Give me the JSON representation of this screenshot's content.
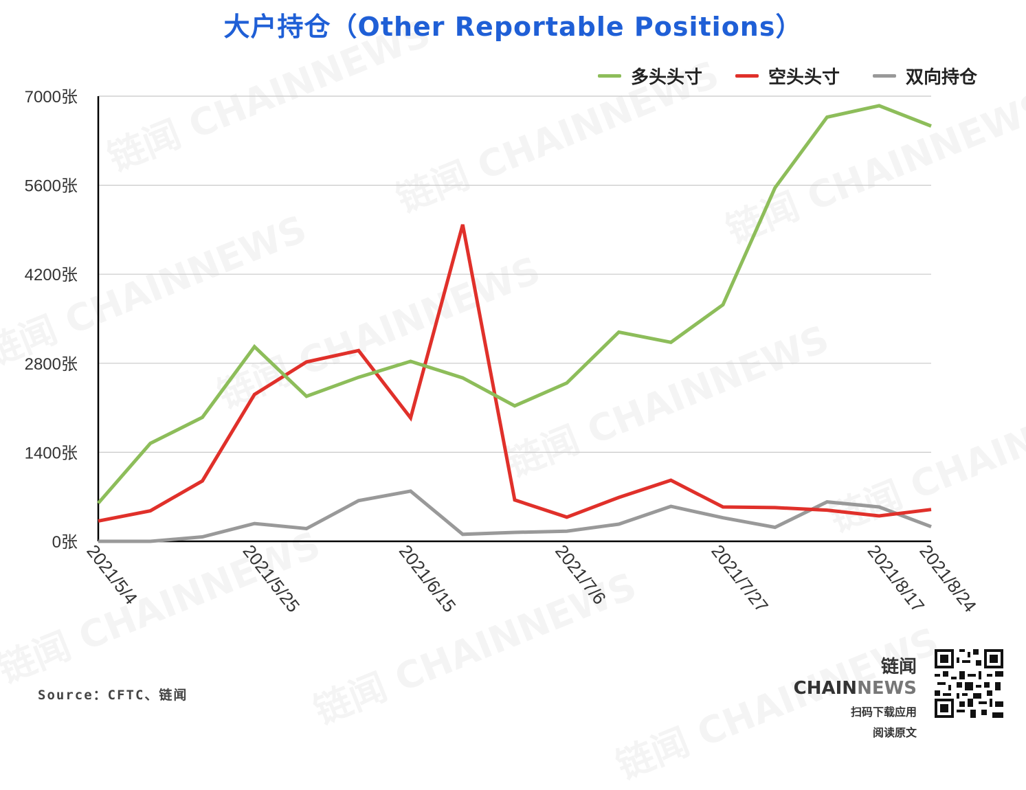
{
  "title": "大户持仓（Other Reportable Positions）",
  "legend": [
    {
      "label": "多头头寸",
      "color": "#8dbd5a"
    },
    {
      "label": "空头头寸",
      "color": "#e0302a"
    },
    {
      "label": "双向持仓",
      "color": "#999999"
    }
  ],
  "watermark_text": "链闻 CHAINNEWS",
  "source": "Source：CFTC、链闻",
  "brand": {
    "name_a": "链闻 CHAIN",
    "name_b": "NEWS",
    "line1": "扫码下载应用",
    "line2": "阅读原文"
  },
  "chart_data": {
    "type": "line",
    "x": [
      "2021/5/4",
      "2021/5/11",
      "2021/5/18",
      "2021/5/25",
      "2021/6/1",
      "2021/6/8",
      "2021/6/15",
      "2021/6/22",
      "2021/6/29",
      "2021/7/6",
      "2021/7/13",
      "2021/7/20",
      "2021/7/27",
      "2021/8/3",
      "2021/8/10",
      "2021/8/17",
      "2021/8/24"
    ],
    "x_tick_labels": [
      "2021/5/4",
      "2021/5/25",
      "2021/6/15",
      "2021/7/6",
      "2021/7/27",
      "2021/8/17",
      "2021/8/24"
    ],
    "y_tick_labels": [
      "0张",
      "1400张",
      "2800张",
      "4200张",
      "5600张",
      "7000张"
    ],
    "ylim": [
      0,
      7000
    ],
    "grid": true,
    "legend_position": "top-right",
    "series": [
      {
        "name": "多头头寸",
        "color": "#8dbd5a",
        "values": [
          600,
          1540,
          1950,
          3060,
          2280,
          2580,
          2830,
          2570,
          2130,
          2490,
          3290,
          3130,
          3720,
          5560,
          6670,
          6850,
          6530
        ]
      },
      {
        "name": "空头头寸",
        "color": "#e0302a",
        "values": [
          320,
          480,
          950,
          2310,
          2820,
          3000,
          1940,
          4980,
          650,
          380,
          690,
          960,
          540,
          530,
          490,
          400,
          500
        ]
      },
      {
        "name": "双向持仓",
        "color": "#999999",
        "values": [
          0,
          0,
          70,
          280,
          200,
          640,
          790,
          110,
          140,
          160,
          270,
          550,
          370,
          220,
          620,
          540,
          230
        ]
      }
    ]
  }
}
